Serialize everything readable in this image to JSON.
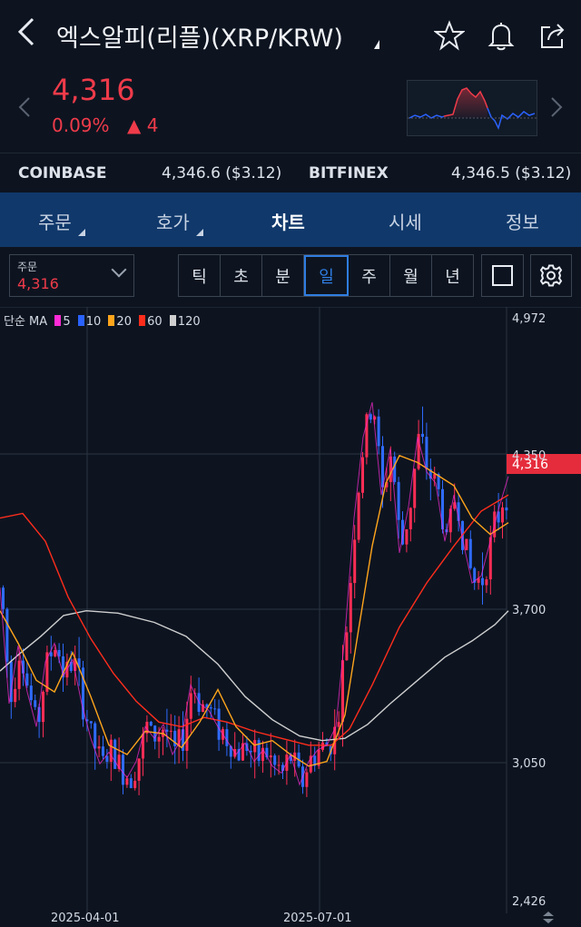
{
  "header": {
    "back_icon": "chevron-left-icon",
    "title": "엑스알피(리플)(XRP/KRW)",
    "icons": [
      "star-icon",
      "bell-icon",
      "share-icon"
    ]
  },
  "ticker": {
    "price": "4,316",
    "change_pct": "0.09%",
    "change_abs": "▲ 4",
    "color_up": "#ef3b4a"
  },
  "exchanges": [
    {
      "name": "COINBASE",
      "value": "4,346.6 ($3.12)"
    },
    {
      "name": "BITFINEX",
      "value": "4,346.5 ($3.12)"
    }
  ],
  "tabs": [
    {
      "label": "주문"
    },
    {
      "label": "호가"
    },
    {
      "label": "차트"
    },
    {
      "label": "시세"
    },
    {
      "label": "정보"
    }
  ],
  "toolbar": {
    "order_label": "주문",
    "order_value": "4,316",
    "periods": [
      "틱",
      "초",
      "분",
      "일",
      "주",
      "월",
      "년"
    ],
    "selected_period": "일"
  },
  "legend": {
    "prefix": "단순 MA",
    "items": [
      {
        "value": "5",
        "color": "#ff2bd6"
      },
      {
        "value": "10",
        "color": "#2a62ff"
      },
      {
        "value": "20",
        "color": "#ffa51c"
      },
      {
        "value": "60",
        "color": "#ff2d1c"
      },
      {
        "value": "120",
        "color": "#cfcfcf"
      }
    ]
  },
  "chart_data": {
    "type": "candlestick",
    "y_ticks": [
      "4,972",
      "4,350",
      "3,700",
      "3,050",
      "2,426"
    ],
    "x_labels": [
      "2025-04-01",
      "2025-07-01"
    ],
    "last_price_label": "4,316",
    "ylim": [
      2426,
      4972
    ],
    "grid": true,
    "ma_120": [
      [
        0,
        3440
      ],
      [
        20,
        3510
      ],
      [
        45,
        3590
      ],
      [
        70,
        3680
      ],
      [
        95,
        3700
      ],
      [
        130,
        3690
      ],
      [
        170,
        3650
      ],
      [
        205,
        3590
      ],
      [
        240,
        3470
      ],
      [
        270,
        3330
      ],
      [
        300,
        3230
      ],
      [
        330,
        3160
      ],
      [
        355,
        3140
      ],
      [
        380,
        3150
      ],
      [
        405,
        3210
      ],
      [
        430,
        3300
      ],
      [
        460,
        3400
      ],
      [
        490,
        3500
      ],
      [
        520,
        3570
      ],
      [
        545,
        3640
      ],
      [
        560,
        3700
      ]
    ],
    "ma_60": [
      [
        0,
        4100
      ],
      [
        25,
        4120
      ],
      [
        50,
        4000
      ],
      [
        75,
        3760
      ],
      [
        100,
        3580
      ],
      [
        125,
        3430
      ],
      [
        150,
        3310
      ],
      [
        175,
        3220
      ],
      [
        200,
        3200
      ],
      [
        225,
        3240
      ],
      [
        250,
        3220
      ],
      [
        280,
        3180
      ],
      [
        310,
        3150
      ],
      [
        340,
        3120
      ],
      [
        365,
        3120
      ],
      [
        385,
        3190
      ],
      [
        410,
        3380
      ],
      [
        440,
        3630
      ],
      [
        470,
        3820
      ],
      [
        500,
        3980
      ],
      [
        530,
        4130
      ],
      [
        560,
        4200
      ]
    ],
    "ma_20": [
      [
        0,
        3700
      ],
      [
        20,
        3560
      ],
      [
        40,
        3400
      ],
      [
        60,
        3350
      ],
      [
        80,
        3520
      ],
      [
        100,
        3330
      ],
      [
        120,
        3120
      ],
      [
        140,
        3080
      ],
      [
        160,
        3180
      ],
      [
        180,
        3170
      ],
      [
        200,
        3110
      ],
      [
        220,
        3220
      ],
      [
        240,
        3360
      ],
      [
        260,
        3200
      ],
      [
        280,
        3120
      ],
      [
        300,
        3140
      ],
      [
        320,
        3080
      ],
      [
        340,
        3030
      ],
      [
        360,
        3050
      ],
      [
        380,
        3250
      ],
      [
        395,
        3620
      ],
      [
        410,
        3980
      ],
      [
        425,
        4250
      ],
      [
        440,
        4370
      ],
      [
        460,
        4340
      ],
      [
        480,
        4290
      ],
      [
        500,
        4240
      ],
      [
        520,
        4100
      ],
      [
        540,
        4030
      ],
      [
        560,
        4080
      ]
    ],
    "ma_5": [
      [
        0,
        3800
      ],
      [
        10,
        3300
      ],
      [
        20,
        3550
      ],
      [
        30,
        3350
      ],
      [
        40,
        3200
      ],
      [
        50,
        3480
      ],
      [
        60,
        3560
      ],
      [
        70,
        3420
      ],
      [
        80,
        3490
      ],
      [
        90,
        3300
      ],
      [
        100,
        3150
      ],
      [
        110,
        3040
      ],
      [
        120,
        3090
      ],
      [
        130,
        3030
      ],
      [
        140,
        2980
      ],
      [
        150,
        3050
      ],
      [
        160,
        3200
      ],
      [
        170,
        3150
      ],
      [
        180,
        3210
      ],
      [
        190,
        3080
      ],
      [
        200,
        3150
      ],
      [
        210,
        3380
      ],
      [
        220,
        3300
      ],
      [
        230,
        3270
      ],
      [
        240,
        3200
      ],
      [
        250,
        3140
      ],
      [
        260,
        3080
      ],
      [
        270,
        3130
      ],
      [
        280,
        3050
      ],
      [
        290,
        3100
      ],
      [
        300,
        3030
      ],
      [
        310,
        3000
      ],
      [
        320,
        3080
      ],
      [
        330,
        2950
      ],
      [
        340,
        3050
      ],
      [
        350,
        3100
      ],
      [
        360,
        3120
      ],
      [
        370,
        3200
      ],
      [
        380,
        3600
      ],
      [
        390,
        4100
      ],
      [
        400,
        4450
      ],
      [
        410,
        4600
      ],
      [
        420,
        4200
      ],
      [
        430,
        4400
      ],
      [
        440,
        3950
      ],
      [
        450,
        4150
      ],
      [
        460,
        4450
      ],
      [
        470,
        4300
      ],
      [
        480,
        4250
      ],
      [
        490,
        4000
      ],
      [
        500,
        4200
      ],
      [
        510,
        4000
      ],
      [
        520,
        3820
      ],
      [
        530,
        3850
      ],
      [
        540,
        4000
      ],
      [
        550,
        4150
      ],
      [
        560,
        4280
      ]
    ]
  }
}
